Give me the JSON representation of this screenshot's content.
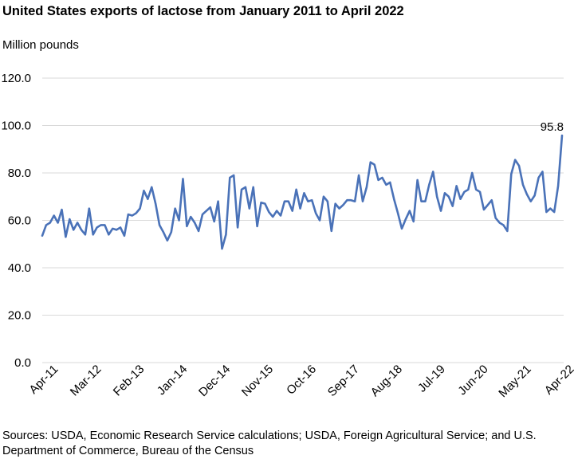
{
  "chart_data": {
    "type": "line",
    "title": "United States exports of lactose from January 2011 to April 2022",
    "ylabel": "Million pounds",
    "xlabel": "",
    "ylim": [
      0,
      120
    ],
    "yticks": [
      "0.0",
      "20.0",
      "40.0",
      "60.0",
      "80.0",
      "100.0",
      "120.0"
    ],
    "xtick_labels": [
      "Apr-11",
      "Mar-12",
      "Feb-13",
      "Jan-14",
      "Dec-14",
      "Nov-15",
      "Oct-16",
      "Sep-17",
      "Aug-18",
      "Jul-19",
      "Jun-20",
      "May-21",
      "Apr-22"
    ],
    "grid": true,
    "legend": "none",
    "series_color": "#4a72b8",
    "x_start": "Jan-11",
    "x_end": "Apr-22",
    "series": [
      {
        "values": [
          53.5,
          58,
          59,
          62,
          59,
          64.5,
          53,
          60.5,
          56,
          59,
          56,
          54,
          65,
          54,
          57,
          58,
          58,
          54,
          56.5,
          56,
          57,
          53.5,
          62.5,
          62,
          63,
          65,
          72.5,
          69,
          74,
          67,
          58,
          55,
          51.5,
          55,
          65,
          60,
          77.5,
          57.5,
          61.5,
          59,
          55.5,
          62.5,
          64,
          65.5,
          59.5,
          68,
          48,
          54,
          78,
          79,
          57,
          73,
          74,
          65,
          74,
          57.5,
          67.5,
          67,
          63.5,
          61.5,
          64,
          62,
          68,
          68,
          64,
          73,
          65,
          71.5,
          68,
          68.5,
          63,
          60,
          70,
          68,
          55.5,
          67,
          65,
          66.5,
          68.5,
          68.5,
          68,
          79,
          68,
          74,
          84.5,
          83.5,
          77,
          78,
          75,
          76,
          69,
          63,
          56.5,
          60.5,
          64,
          59.5,
          77,
          68,
          68,
          75,
          80.5,
          70,
          64,
          71.5,
          70,
          66,
          74.5,
          69,
          72,
          73,
          80,
          73,
          72,
          64.5,
          66.5,
          68.5,
          61,
          59,
          58,
          55.5,
          79.5,
          85.5,
          83,
          75,
          71,
          68,
          70.5,
          78,
          80.5,
          63.5,
          65,
          63.5,
          74.5,
          95.8
        ]
      }
    ],
    "data_label": "95.8"
  },
  "sources": "Sources: USDA, Economic Research Service calculations; USDA, Foreign Agricultural Service; and U.S. Department of Commerce, Bureau of the Census"
}
